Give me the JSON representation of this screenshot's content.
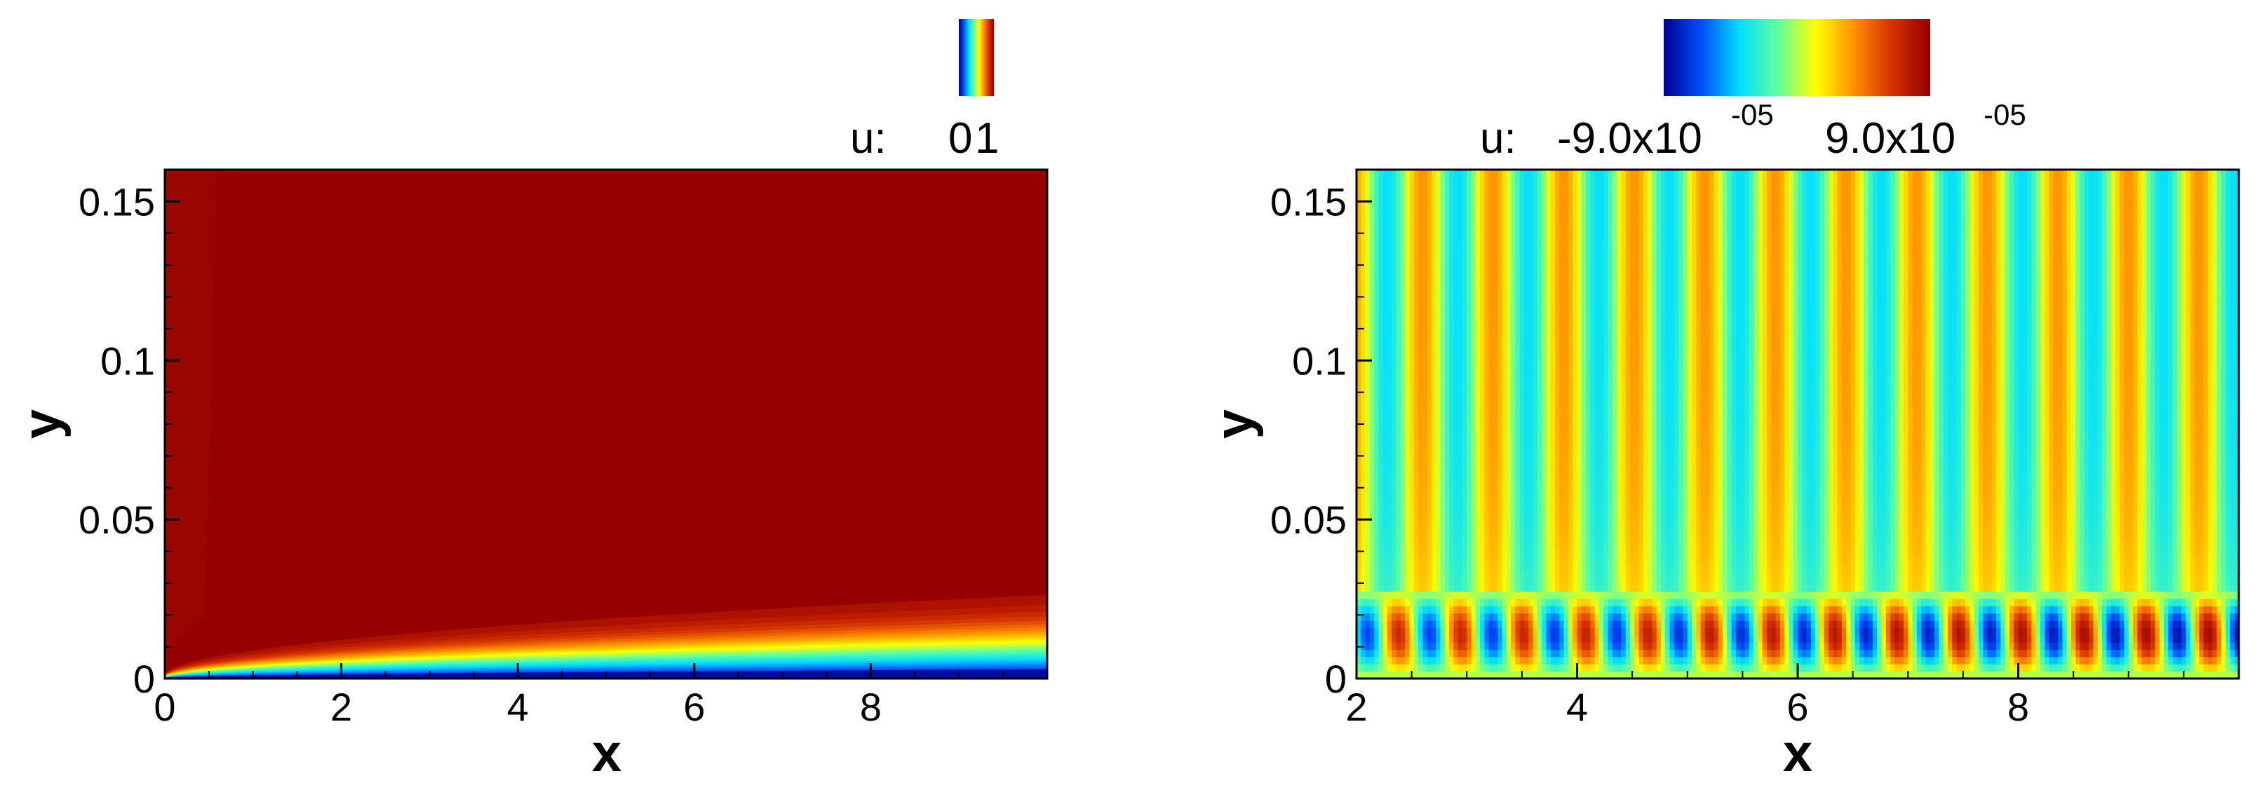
{
  "chart_data": [
    {
      "type": "heatmap",
      "variable": "u",
      "legend": {
        "label": "u:",
        "min_label": "0",
        "max_label": "1",
        "placement": "top"
      },
      "xlabel": "x",
      "ylabel": "y",
      "xlim": [
        0,
        10
      ],
      "ylim": [
        0,
        0.16
      ],
      "xticks": [
        "0",
        "2",
        "4",
        "6",
        "8"
      ],
      "yticks": [
        "0",
        "0.05",
        "0.1",
        "0.15"
      ],
      "colormap": [
        "#00008f",
        "#0050ff",
        "#00dfff",
        "#60ff9f",
        "#ffff00",
        "#ff8f00",
        "#d43000",
        "#960000"
      ],
      "grid": false
    },
    {
      "type": "heatmap",
      "variable": "u",
      "legend": {
        "label": "u:",
        "min_label": "-9.0x10",
        "min_exp": "-05",
        "max_label": "9.0x10",
        "max_exp": "-05",
        "placement": "top"
      },
      "xlabel": "x",
      "ylabel": "y",
      "xlim": [
        2,
        10
      ],
      "ylim": [
        0,
        0.16
      ],
      "xticks": [
        "2",
        "4",
        "6",
        "8"
      ],
      "yticks": [
        "0",
        "0.05",
        "0.1",
        "0.15"
      ],
      "colormap": [
        "#00008f",
        "#0050ff",
        "#00dfff",
        "#60ff9f",
        "#ffff00",
        "#ff8f00",
        "#d43000",
        "#960000"
      ],
      "grid": false
    }
  ]
}
